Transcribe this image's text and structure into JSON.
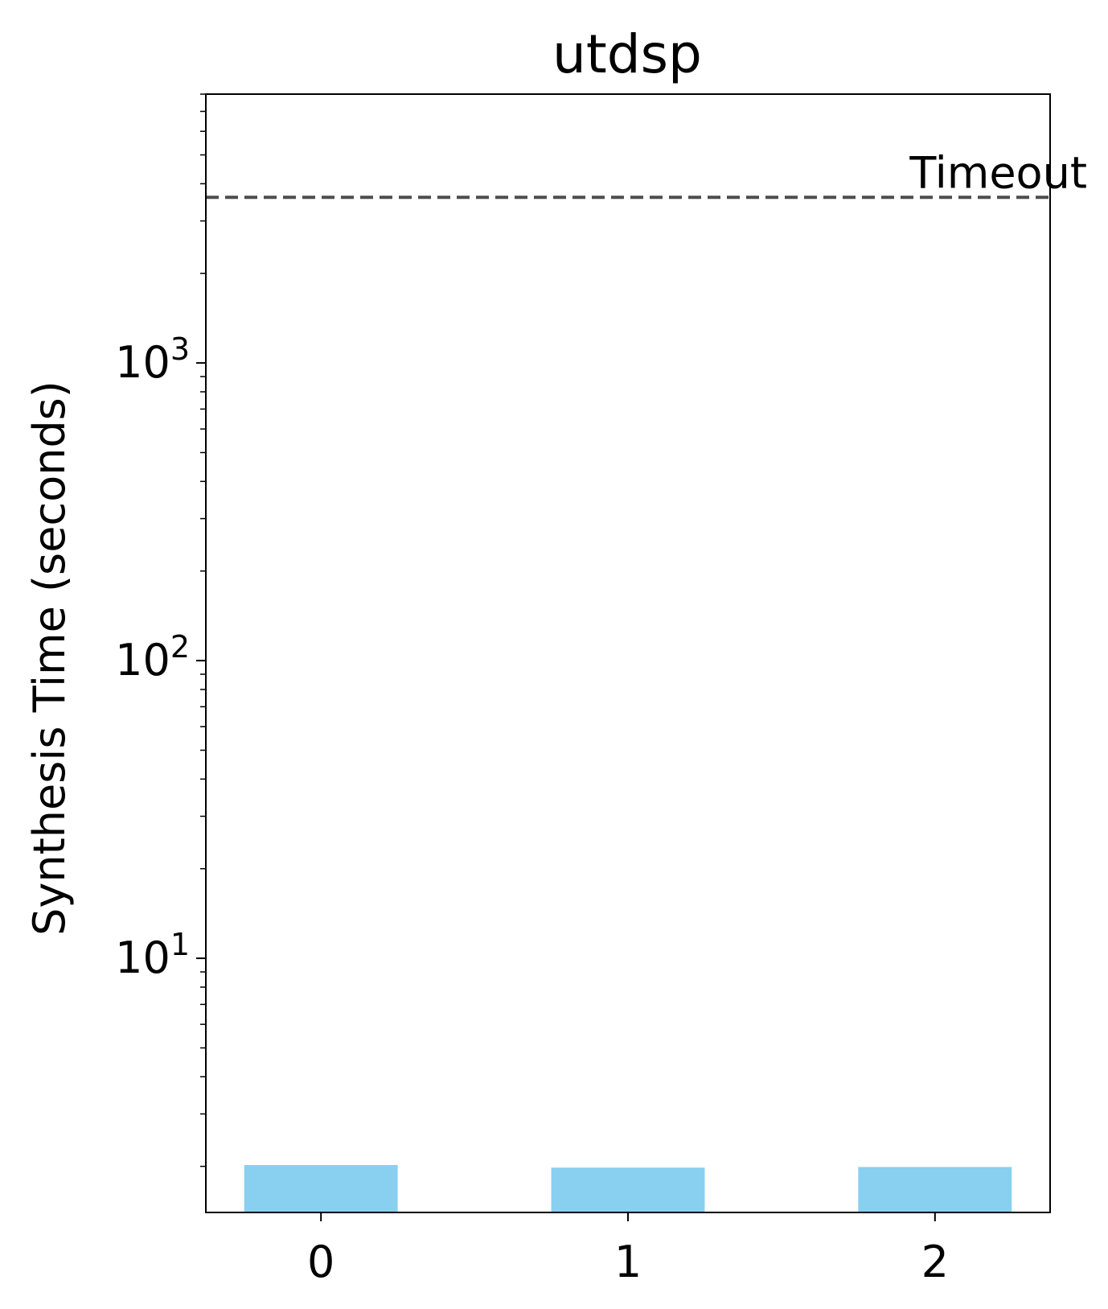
{
  "chart_data": {
    "type": "bar",
    "title": "utdsp",
    "xlabel": "",
    "ylabel": "Synthesis Time (seconds)",
    "yscale": "log",
    "categories": [
      "0",
      "1",
      "2"
    ],
    "values": [
      2.02,
      1.98,
      1.99
    ],
    "ylim": [
      1.4,
      8000
    ],
    "yticks": [
      {
        "value": 10,
        "base": "10",
        "exp": "1"
      },
      {
        "value": 100,
        "base": "10",
        "exp": "2"
      },
      {
        "value": 1000,
        "base": "10",
        "exp": "3"
      }
    ],
    "reference_line": {
      "label": "Timeout",
      "value": 3600,
      "style": "dashed",
      "color": "#4d4d4d"
    },
    "bar_color": "#89CFF0",
    "grid": false
  }
}
